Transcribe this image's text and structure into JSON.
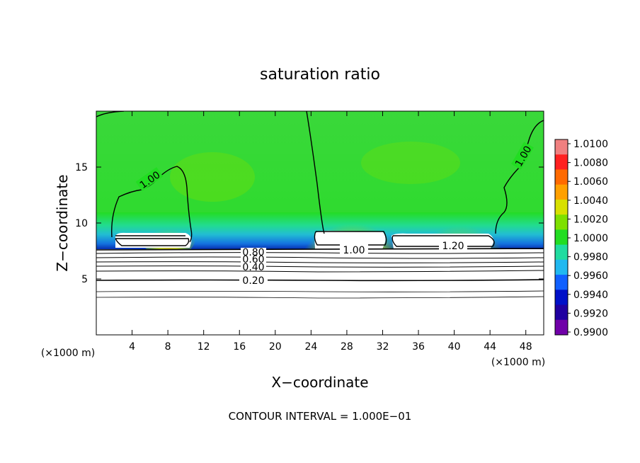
{
  "chart_data": {
    "type": "heatmap",
    "title": "saturation ratio",
    "xlabel": "X−coordinate",
    "ylabel": "Z−coordinate",
    "x_unit": "(×1000 m)",
    "y_unit": "(×1000 m)",
    "xlim": [
      0,
      50
    ],
    "ylim": [
      0,
      20
    ],
    "x_ticks": [
      4,
      8,
      12,
      16,
      20,
      24,
      28,
      32,
      36,
      40,
      44,
      48
    ],
    "x_tick_labels": [
      "4",
      "8",
      "12",
      "16",
      "20",
      "24",
      "28",
      "32",
      "36",
      "40",
      "44",
      "48"
    ],
    "y_ticks": [
      5,
      10,
      15
    ],
    "y_tick_labels": [
      "5",
      "10",
      "15"
    ],
    "footer": "CONTOUR INTERVAL = 1.000E−01",
    "colorbar": {
      "labels": [
        "1.0100",
        "1.0080",
        "1.0060",
        "1.0040",
        "1.0020",
        "1.0000",
        "0.9980",
        "0.9960",
        "0.9940",
        "0.9920",
        "0.9900"
      ],
      "colors": [
        "#f08080",
        "#ff2020",
        "#ff6a00",
        "#ffa000",
        "#d8e000",
        "#7ee000",
        "#22dd22",
        "#20dca0",
        "#20b8f0",
        "#1060ff",
        "#0010c8",
        "#2000a0",
        "#7000a8"
      ]
    },
    "contour_labels": [
      "1.00",
      "1.00",
      "1.00",
      "1.20",
      "0.80",
      "0.60",
      "0.40",
      "0.20"
    ],
    "field_description_values": {
      "background": 1.0,
      "max": 1.01,
      "min": 0.99
    }
  }
}
